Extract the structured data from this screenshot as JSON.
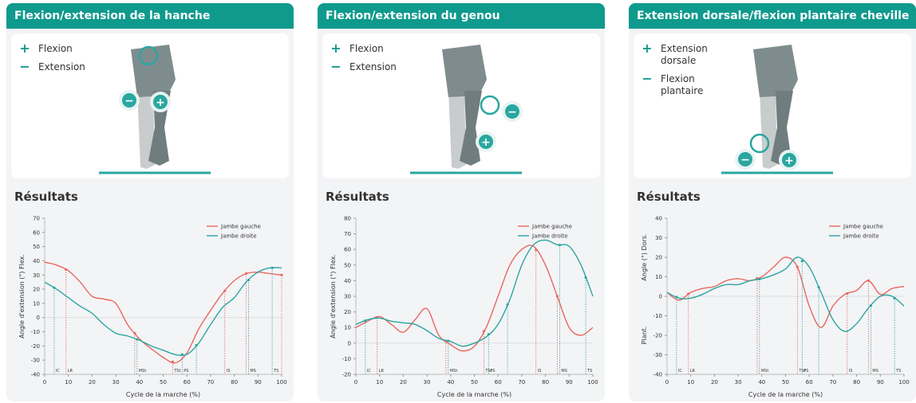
{
  "panels": [
    {
      "title": "Flexion/extension de la hanche",
      "legend": [
        "Flexion",
        "Extension"
      ],
      "results": "Résultats"
    },
    {
      "title": "Flexion/extension du genou",
      "legend": [
        "Flexion",
        "Extension"
      ],
      "results": "Résultats"
    },
    {
      "title": "Extension dorsale/flexion plantaire cheville",
      "legend": [
        "Extension dorsale",
        "Flexion plantaire"
      ],
      "results": "Résultats"
    }
  ],
  "chart_data": [
    {
      "type": "line",
      "xlabel": "Cycle de la marche (%)",
      "ylabel": "Angle d'extension (°) Flex.",
      "x": [
        0,
        5,
        10,
        15,
        20,
        25,
        30,
        35,
        40,
        45,
        50,
        55,
        60,
        65,
        70,
        75,
        80,
        85,
        90,
        95,
        100
      ],
      "xlim": [
        0,
        100
      ],
      "xticks": [
        0,
        10,
        20,
        30,
        40,
        50,
        60,
        70,
        80,
        90,
        100
      ],
      "ylim": [
        -40,
        70
      ],
      "yticks": [
        -40,
        -30,
        -20,
        -10,
        0,
        10,
        20,
        30,
        40,
        50,
        60,
        70
      ],
      "legend": "upper right",
      "series": [
        {
          "name": "Jambe gauche",
          "color": "#e8675e",
          "values": [
            39,
            37,
            33,
            25,
            15,
            13,
            10,
            -5,
            -15,
            -22,
            -28,
            -32,
            -25,
            -8,
            5,
            17,
            26,
            31,
            32,
            31,
            30
          ],
          "events": [
            {
              "label": "LR",
              "x": 9
            },
            {
              "label": null,
              "x": 38
            },
            {
              "label": "TSt",
              "x": 54
            },
            {
              "label": "IS",
              "x": 76
            },
            {
              "label": null,
              "x": 85
            },
            {
              "label": null,
              "x": 100
            }
          ]
        },
        {
          "name": "Jambe droite",
          "color": "#2aa6a0",
          "values": [
            25,
            20,
            14,
            8,
            3,
            -5,
            -11,
            -13,
            -16,
            -20,
            -23,
            -26,
            -26,
            -18,
            -5,
            7,
            14,
            25,
            32,
            35,
            35
          ],
          "events": [
            {
              "label": "IC",
              "x": 4
            },
            {
              "label": "MSt",
              "x": 39
            },
            {
              "label": "PS",
              "x": 58
            },
            {
              "label": null,
              "x": 64
            },
            {
              "label": "MS",
              "x": 86
            },
            {
              "label": "TS",
              "x": 96
            }
          ]
        }
      ]
    },
    {
      "type": "line",
      "xlabel": "Cycle de la marche (%)",
      "ylabel": "Angle d'extension (°) Flex.",
      "x": [
        0,
        5,
        10,
        15,
        20,
        25,
        30,
        35,
        40,
        45,
        50,
        55,
        60,
        65,
        70,
        75,
        80,
        85,
        90,
        95,
        100
      ],
      "xlim": [
        0,
        100
      ],
      "xticks": [
        0,
        10,
        20,
        30,
        40,
        50,
        60,
        70,
        80,
        90,
        100
      ],
      "ylim": [
        -20,
        80
      ],
      "yticks": [
        -20,
        -10,
        0,
        10,
        20,
        30,
        40,
        50,
        60,
        70,
        80
      ],
      "legend": "upper right",
      "series": [
        {
          "name": "Jambe gauche",
          "color": "#e8675e",
          "values": [
            10,
            14,
            17,
            12,
            7,
            15,
            22,
            5,
            -1,
            -5,
            -2,
            10,
            30,
            50,
            60,
            62,
            50,
            30,
            10,
            5,
            10
          ],
          "events": [
            {
              "label": "LR",
              "x": 9
            },
            {
              "label": null,
              "x": 38
            },
            {
              "label": "TSt",
              "x": 54
            },
            {
              "label": "IS",
              "x": 76
            },
            {
              "label": null,
              "x": 85
            }
          ]
        },
        {
          "name": "Jambe droite",
          "color": "#2aa6a0",
          "values": [
            12,
            15,
            16,
            14,
            13,
            12,
            8,
            3,
            1,
            -2,
            0,
            4,
            12,
            28,
            50,
            63,
            66,
            63,
            62,
            50,
            30
          ],
          "events": [
            {
              "label": "IC",
              "x": 4
            },
            {
              "label": "MSt",
              "x": 39
            },
            {
              "label": "PS",
              "x": 56
            },
            {
              "label": null,
              "x": 64
            },
            {
              "label": "MS",
              "x": 86
            },
            {
              "label": "TS",
              "x": 97
            }
          ]
        }
      ]
    },
    {
      "type": "line",
      "xlabel": "Cycle de la marche (%)",
      "ylabel": "Angle (°) Dors.",
      "ylabel_negative": "Plant.",
      "x": [
        0,
        5,
        10,
        15,
        20,
        25,
        30,
        35,
        40,
        45,
        50,
        55,
        60,
        65,
        70,
        75,
        80,
        85,
        90,
        95,
        100
      ],
      "xlim": [
        0,
        100
      ],
      "xticks": [
        0,
        10,
        20,
        30,
        40,
        50,
        60,
        70,
        80,
        90,
        100
      ],
      "ylim": [
        -40,
        40
      ],
      "yticks": [
        -40,
        -30,
        -20,
        -10,
        0,
        10,
        20,
        30,
        40
      ],
      "legend": "upper right",
      "series": [
        {
          "name": "Jambe gauche",
          "color": "#e8675e",
          "values": [
            2,
            -2,
            2,
            4,
            5,
            8,
            9,
            8,
            10,
            15,
            20,
            15,
            -5,
            -16,
            -5,
            1,
            3,
            8,
            1,
            4,
            5
          ],
          "events": [
            {
              "label": "LR",
              "x": 9
            },
            {
              "label": null,
              "x": 38
            },
            {
              "label": "TSt",
              "x": 55
            },
            {
              "label": "IS",
              "x": 76
            },
            {
              "label": null,
              "x": 85
            }
          ]
        },
        {
          "name": "Jambe droite",
          "color": "#2aa6a0",
          "values": [
            2,
            -1,
            -1,
            1,
            4,
            6,
            6,
            8,
            9,
            11,
            14,
            20,
            15,
            2,
            -12,
            -18,
            -14,
            -6,
            0,
            0,
            -5
          ],
          "events": [
            {
              "label": "IC",
              "x": 4
            },
            {
              "label": "MSt",
              "x": 39
            },
            {
              "label": "PS",
              "x": 57
            },
            {
              "label": null,
              "x": 64
            },
            {
              "label": "MS",
              "x": 86
            },
            {
              "label": "TS",
              "x": 96
            }
          ]
        }
      ]
    }
  ]
}
